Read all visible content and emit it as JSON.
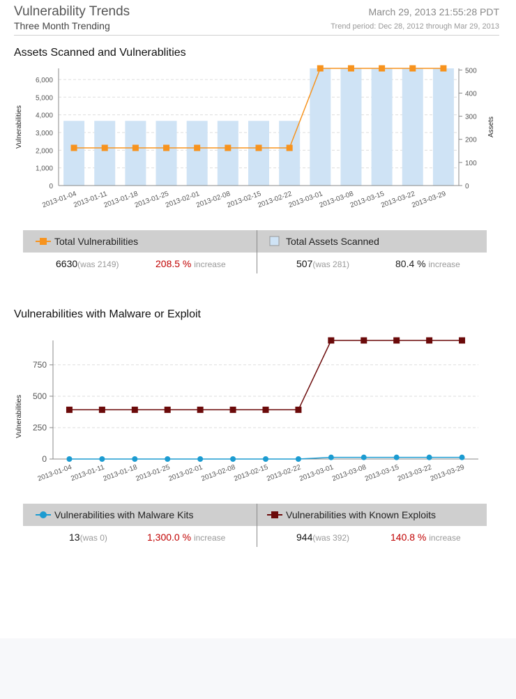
{
  "header": {
    "title": "Vulnerability Trends",
    "subtitle": "Three Month Trending",
    "datetime": "March 29, 2013  21:55:28 PDT",
    "period": "Trend period: Dec 28, 2012 through Mar 29, 2013"
  },
  "section1": {
    "title": "Assets Scanned and Vulnerablities",
    "legend": {
      "left": {
        "label": "Total Vulnerabilities",
        "value": "6630",
        "was": "(was 2149)",
        "pct": "208.5 %",
        "word": "increase"
      },
      "right": {
        "label": "Total Assets Scanned",
        "value": "507",
        "was": "(was 281)",
        "pct": "80.4 %",
        "word": "increase"
      }
    }
  },
  "section2": {
    "title": "Vulnerabilities with Malware or Exploit",
    "legend": {
      "left": {
        "label": "Vulnerabilities with Malware Kits",
        "value": "13",
        "was": "(was 0)",
        "pct": "1,300.0 %",
        "word": "increase"
      },
      "right": {
        "label": "Vulnerabilities with Known Exploits",
        "value": "944",
        "was": "(was 392)",
        "pct": "140.8 %",
        "word": "increase"
      }
    }
  },
  "colors": {
    "bar": "#cfe3f5",
    "orange": "#f7931e",
    "blue": "#1b9bd1",
    "darkred": "#6b0a0a",
    "red": "#c00000"
  },
  "chart_data": [
    {
      "type": "bar",
      "title": "Assets Scanned and Vulnerablities",
      "categories": [
        "2013-01-04",
        "2013-01-11",
        "2013-01-18",
        "2013-01-25",
        "2013-02-01",
        "2013-02-08",
        "2013-02-15",
        "2013-02-22",
        "2013-03-01",
        "2013-03-08",
        "2013-03-15",
        "2013-03-22",
        "2013-03-29"
      ],
      "ylabel": "Vulnerabilities",
      "y2label": "Assets",
      "ylim": [
        0,
        6630
      ],
      "yticks": [
        "0",
        "1,000",
        "2,000",
        "3,000",
        "4,000",
        "5,000",
        "6,000"
      ],
      "y2lim": [
        0,
        507
      ],
      "y2ticks": [
        "0",
        "100",
        "200",
        "300",
        "400",
        "500"
      ],
      "series": [
        {
          "name": "Total Vulnerabilities",
          "values": [
            3660,
            3660,
            3660,
            3660,
            3660,
            3660,
            3660,
            3660,
            6630,
            6630,
            6630,
            6630,
            6630
          ]
        },
        {
          "name": "Total Assets Scanned",
          "values": [
            163,
            163,
            163,
            163,
            163,
            163,
            163,
            163,
            507,
            507,
            507,
            507,
            507
          ]
        }
      ],
      "grid": true
    },
    {
      "type": "line",
      "title": "Vulnerabilities with Malware or Exploit",
      "categories": [
        "2013-01-04",
        "2013-01-11",
        "2013-01-18",
        "2013-01-25",
        "2013-02-01",
        "2013-02-08",
        "2013-02-15",
        "2013-02-22",
        "2013-03-01",
        "2013-03-08",
        "2013-03-15",
        "2013-03-22",
        "2013-03-29"
      ],
      "ylabel": "Vulnerabilities",
      "ylim": [
        0,
        944
      ],
      "yticks": [
        "0",
        "250",
        "500",
        "750"
      ],
      "series": [
        {
          "name": "Vulnerabilities with Malware Kits",
          "values": [
            0,
            0,
            0,
            0,
            0,
            0,
            0,
            0,
            13,
            13,
            13,
            13,
            13
          ]
        },
        {
          "name": "Vulnerabilities with Known Exploits",
          "values": [
            392,
            392,
            392,
            392,
            392,
            392,
            392,
            392,
            944,
            944,
            944,
            944,
            944
          ]
        }
      ],
      "grid": true
    }
  ]
}
